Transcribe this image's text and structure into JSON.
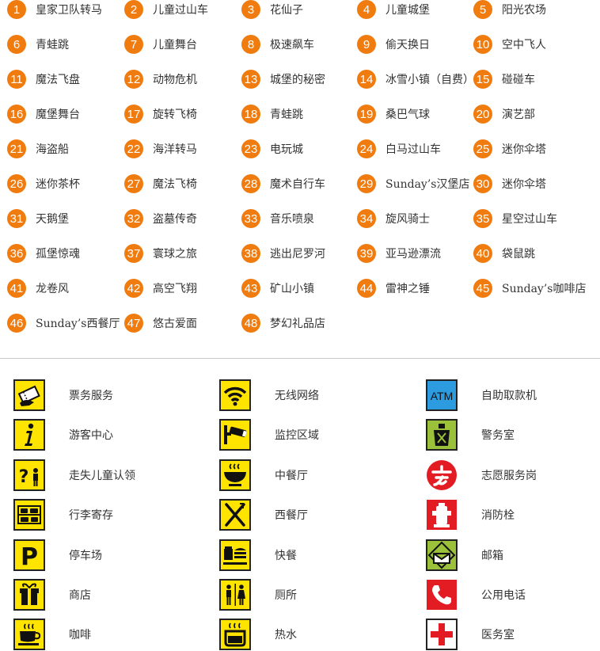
{
  "attractions": [
    {
      "num": "1",
      "name": "皇家卫队转马"
    },
    {
      "num": "2",
      "name": "儿童过山车"
    },
    {
      "num": "3",
      "name": "花仙子"
    },
    {
      "num": "4",
      "name": "儿童城堡"
    },
    {
      "num": "5",
      "name": "阳光农场"
    },
    {
      "num": "6",
      "name": "青蛙跳"
    },
    {
      "num": "7",
      "name": "儿童舞台"
    },
    {
      "num": "8",
      "name": "极速飙车"
    },
    {
      "num": "9",
      "name": "偷天换日"
    },
    {
      "num": "10",
      "name": "空中飞人"
    },
    {
      "num": "11",
      "name": "魔法飞盘"
    },
    {
      "num": "12",
      "name": "动物危机"
    },
    {
      "num": "13",
      "name": "城堡的秘密"
    },
    {
      "num": "14",
      "name": "冰雪小镇（自费）"
    },
    {
      "num": "15",
      "name": "碰碰车"
    },
    {
      "num": "16",
      "name": "魔堡舞台"
    },
    {
      "num": "17",
      "name": "旋转飞椅"
    },
    {
      "num": "18",
      "name": "青蛙跳"
    },
    {
      "num": "19",
      "name": "桑巴气球"
    },
    {
      "num": "20",
      "name": "演艺部"
    },
    {
      "num": "21",
      "name": "海盗船"
    },
    {
      "num": "22",
      "name": "海洋转马"
    },
    {
      "num": "23",
      "name": "电玩城"
    },
    {
      "num": "24",
      "name": "白马过山车"
    },
    {
      "num": "25",
      "name": "迷你伞塔"
    },
    {
      "num": "26",
      "name": "迷你茶杯"
    },
    {
      "num": "27",
      "name": "魔法飞椅"
    },
    {
      "num": "28",
      "name": "魔术自行车"
    },
    {
      "num": "29",
      "name": "Sunday’s汉堡店"
    },
    {
      "num": "30",
      "name": "迷你伞塔"
    },
    {
      "num": "31",
      "name": "天鹅堡"
    },
    {
      "num": "32",
      "name": "盗墓传奇"
    },
    {
      "num": "33",
      "name": "音乐喷泉"
    },
    {
      "num": "34",
      "name": "旋风骑士"
    },
    {
      "num": "35",
      "name": "星空过山车"
    },
    {
      "num": "36",
      "name": "孤堡惊魂"
    },
    {
      "num": "37",
      "name": "寰球之旅"
    },
    {
      "num": "38",
      "name": "逃出尼罗河"
    },
    {
      "num": "39",
      "name": "亚马逊漂流"
    },
    {
      "num": "40",
      "name": "袋鼠跳"
    },
    {
      "num": "41",
      "name": "龙卷风"
    },
    {
      "num": "42",
      "name": "高空飞翔"
    },
    {
      "num": "43",
      "name": "矿山小镇"
    },
    {
      "num": "44",
      "name": "雷神之锤"
    },
    {
      "num": "45",
      "name": "Sunday’s咖啡店"
    },
    {
      "num": "46",
      "name": "Sunday’s西餐厅"
    },
    {
      "num": "47",
      "name": "悠古爱面"
    },
    {
      "num": "48",
      "name": "梦幻礼品店"
    }
  ],
  "legend": [
    {
      "icon": "ticket-icon",
      "label": "票务服务"
    },
    {
      "icon": "wifi-icon",
      "label": "无线网络"
    },
    {
      "icon": "atm-icon",
      "label": "自助取款机",
      "text": "ATM"
    },
    {
      "icon": "info-icon",
      "label": "游客中心"
    },
    {
      "icon": "cctv-icon",
      "label": "监控区域"
    },
    {
      "icon": "police-icon",
      "label": "警务室"
    },
    {
      "icon": "lost-child-icon",
      "label": "走失儿童认领"
    },
    {
      "icon": "bowl-icon",
      "label": "中餐厅"
    },
    {
      "icon": "volunteer-icon",
      "label": "志愿服务岗"
    },
    {
      "icon": "luggage-icon",
      "label": "行李寄存"
    },
    {
      "icon": "fork-knife-icon",
      "label": "西餐厅"
    },
    {
      "icon": "hydrant-icon",
      "label": "消防栓"
    },
    {
      "icon": "parking-icon",
      "label": "停车场",
      "text": "P"
    },
    {
      "icon": "fastfood-icon",
      "label": "快餐"
    },
    {
      "icon": "mailbox-icon",
      "label": "邮箱"
    },
    {
      "icon": "shop-icon",
      "label": "商店"
    },
    {
      "icon": "restroom-icon",
      "label": "厕所"
    },
    {
      "icon": "phone-icon",
      "label": "公用电话"
    },
    {
      "icon": "coffee-icon",
      "label": "咖啡"
    },
    {
      "icon": "hot-water-icon",
      "label": "热水"
    },
    {
      "icon": "medical-icon",
      "label": "医务室"
    }
  ],
  "colors": {
    "badge": "#f07b0f",
    "yellow": "#ffe400",
    "atm_blue": "#2d9be0",
    "police_green": "#9bc03a",
    "red": "#e31c23"
  }
}
